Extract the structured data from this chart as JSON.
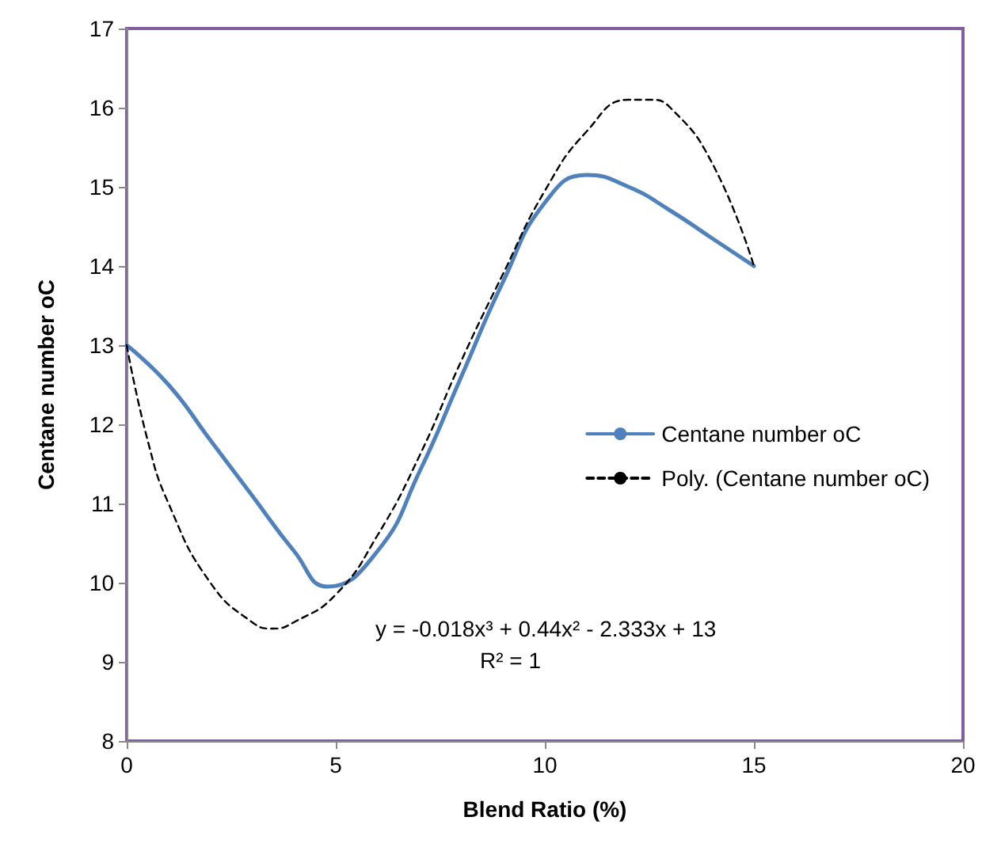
{
  "chart_data": {
    "type": "line",
    "xlabel": "Blend Ratio (%)",
    "ylabel": "Centane number oC",
    "xlim": [
      0,
      20
    ],
    "xticks": [
      0,
      5,
      10,
      15,
      20
    ],
    "ylim": [
      8,
      17
    ],
    "yticks": [
      8,
      9,
      10,
      11,
      12,
      13,
      14,
      15,
      16,
      17
    ],
    "grid": false,
    "legend": "right",
    "marker": "none",
    "series": [
      {
        "name": "Centane number oC",
        "color": "#4f81bd",
        "line_style": "solid",
        "x": [
          0,
          1,
          2,
          3,
          4,
          4.8,
          6,
          7,
          8,
          9,
          10,
          11,
          12,
          13,
          14,
          15
        ],
        "values": [
          13,
          12.5,
          11.8,
          11.1,
          10.4,
          9.95,
          10.4,
          11.4,
          12.6,
          13.8,
          14.8,
          15.15,
          15,
          14.7,
          14.35,
          14
        ]
      },
      {
        "name": "Poly. (Centane number oC)",
        "color": "#000000",
        "line_style": "dashed",
        "x": [
          0,
          0.5,
          1,
          2,
          3,
          3.5,
          4,
          5,
          6,
          7,
          8,
          9,
          10,
          11,
          12,
          12.5,
          13,
          14,
          15
        ],
        "values": [
          13,
          11.8,
          11,
          10,
          9.5,
          9.42,
          9.5,
          9.85,
          10.6,
          11.6,
          12.8,
          13.9,
          14.95,
          15.7,
          16.1,
          16.1,
          16,
          15.3,
          14
        ]
      }
    ],
    "annotations": [
      "y = -0.018x³ + 0.44x² - 2.333x + 13",
      "R² = 1"
    ]
  }
}
